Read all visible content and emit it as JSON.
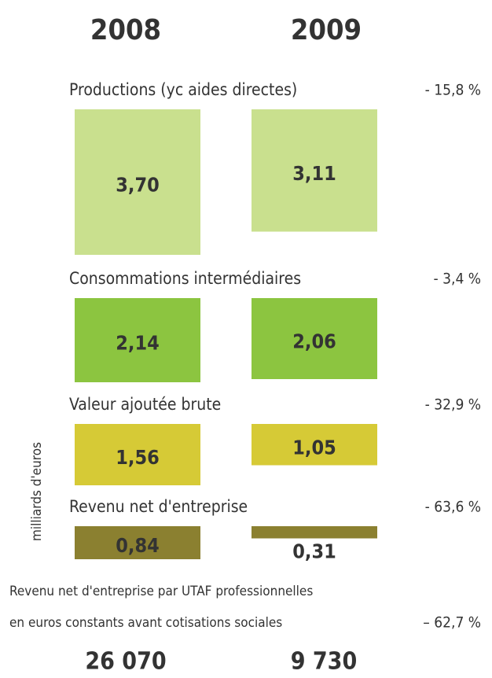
{
  "years": [
    "2008",
    "2009"
  ],
  "y_axis_label": "milliards d'euros",
  "chart_data": [
    {
      "type": "bar",
      "title": "Productions (yc aides directes)",
      "values": [
        3.7,
        3.11
      ],
      "value_labels": [
        "3,70",
        "3,11"
      ],
      "change": "- 15,8 %",
      "color": "#c9e08e"
    },
    {
      "type": "bar",
      "title": "Consommations intermédiaires",
      "values": [
        2.14,
        2.06
      ],
      "value_labels": [
        "2,14",
        "2,06"
      ],
      "change": "- 3,4 %",
      "color": "#8cc540"
    },
    {
      "type": "bar",
      "title": "Valeur ajoutée brute",
      "values": [
        1.56,
        1.05
      ],
      "value_labels": [
        "1,56",
        "1,05"
      ],
      "change": "- 32,9 %",
      "color": "#d6ca36"
    },
    {
      "type": "bar",
      "title": "Revenu net d'entreprise",
      "values": [
        0.84,
        0.31
      ],
      "value_labels": [
        "0,84",
        "0,31"
      ],
      "change": "- 63,6 %",
      "color": "#8b8030"
    }
  ],
  "footer": {
    "lines": [
      "Revenu net d'entreprise par UTAF professionnelles",
      "en euros constants avant cotisations sociales"
    ],
    "change": "– 62,7 %",
    "values": [
      26070,
      9730
    ],
    "value_labels": [
      "26 070",
      "9 730"
    ]
  }
}
